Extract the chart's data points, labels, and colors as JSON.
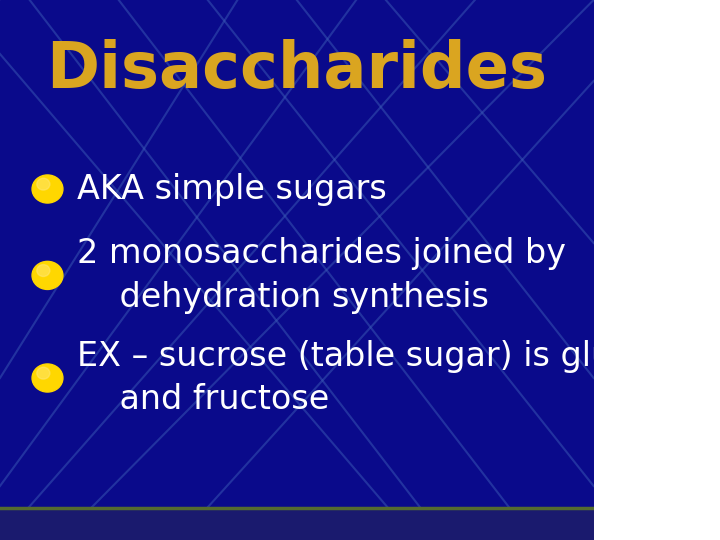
{
  "title": "Disaccharides",
  "title_color": "#DAA520",
  "title_fontsize": 46,
  "title_fontstyle": "bold",
  "title_fontfamily": "Impact",
  "bullet_points": [
    "AKA simple sugars",
    "2 monosaccharides joined by\n    dehydration synthesis",
    "EX – sucrose (table sugar) is glucose\n    and fructose"
  ],
  "bullet_color": "#FFD700",
  "text_color": "#FFFFFF",
  "text_fontsize": 24,
  "text_fontfamily": "Arial",
  "bg_color": "#0A0A8B",
  "line_color": "#3B5BB5",
  "bottom_bar_color": "#1A1A6E",
  "bottom_line_color": "#556B2F",
  "figsize": [
    7.2,
    5.4
  ],
  "dpi": 100
}
